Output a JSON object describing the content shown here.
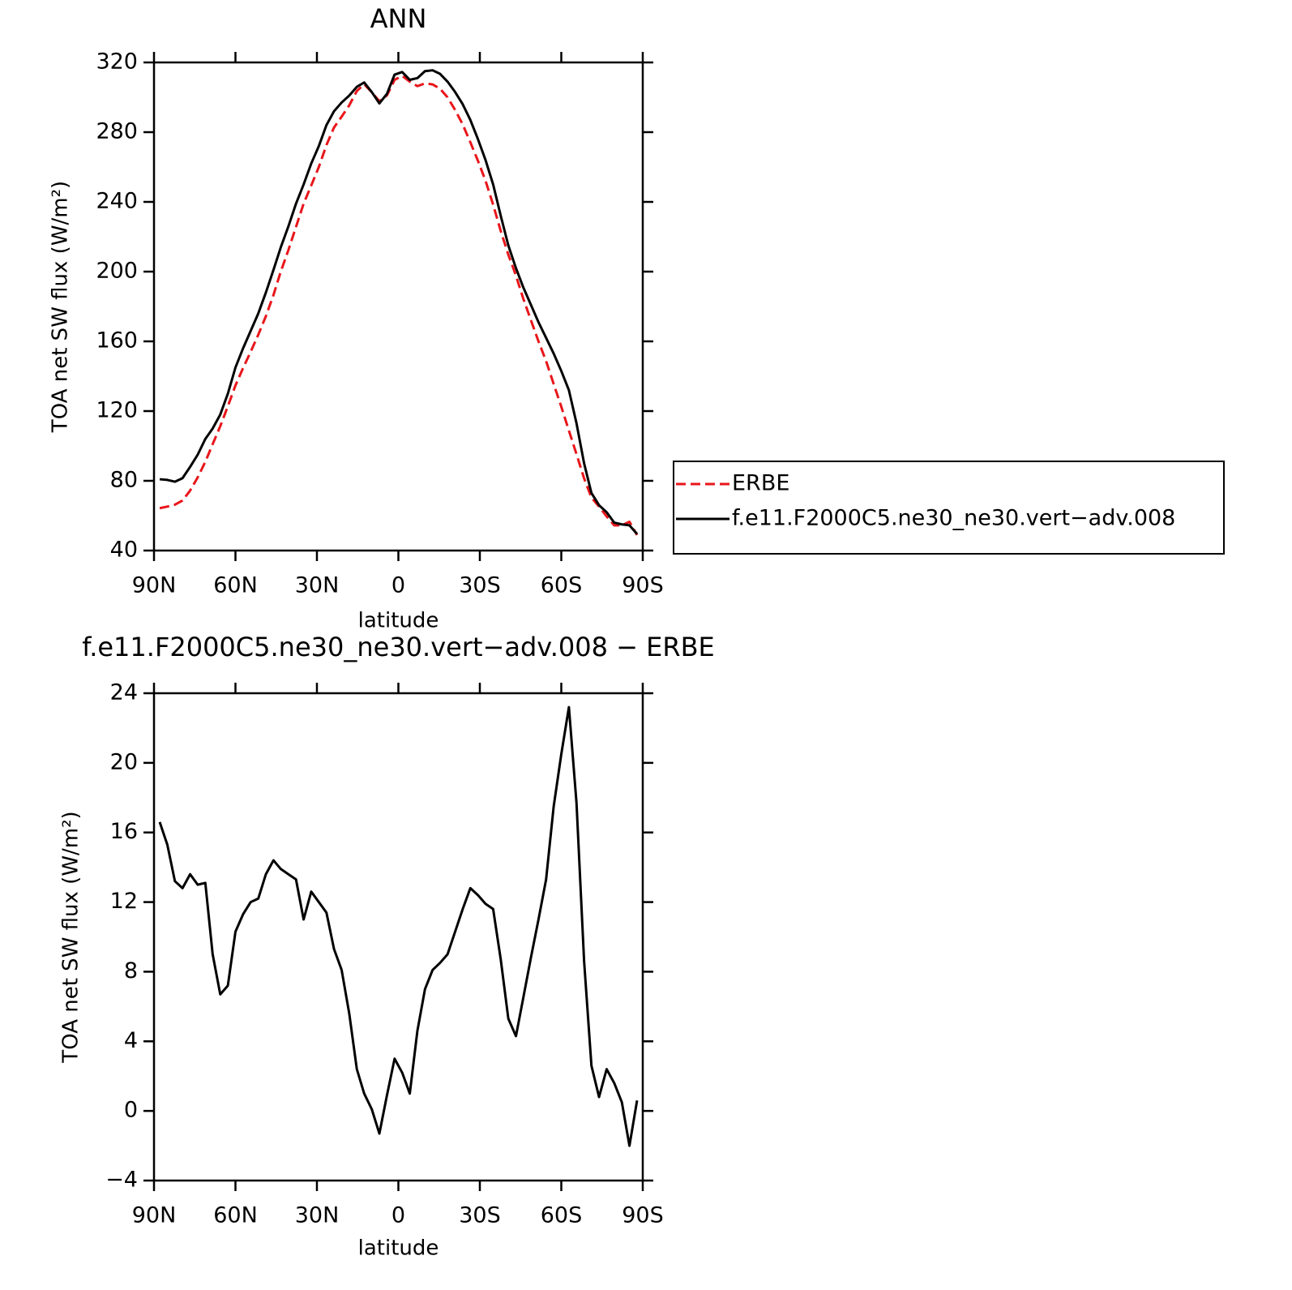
{
  "chart_data": [
    {
      "type": "line",
      "title": "ANN",
      "xlabel": "latitude",
      "ylabel": "TOA net SW flux (W/m²)",
      "x": [
        87.9,
        85.1,
        82.3,
        79.5,
        76.7,
        73.9,
        71.1,
        68.4,
        65.6,
        62.8,
        60.0,
        57.2,
        54.4,
        51.6,
        48.8,
        46.0,
        43.3,
        40.5,
        37.7,
        34.9,
        32.1,
        29.3,
        26.5,
        23.7,
        20.9,
        18.1,
        15.3,
        12.6,
        9.8,
        7.0,
        4.2,
        1.4,
        -1.4,
        -4.2,
        -7.0,
        -9.8,
        -12.6,
        -15.3,
        -18.1,
        -20.9,
        -23.7,
        -26.5,
        -29.3,
        -32.1,
        -34.9,
        -37.7,
        -40.5,
        -43.3,
        -46.0,
        -48.8,
        -51.6,
        -54.4,
        -57.2,
        -60.0,
        -62.8,
        -65.6,
        -68.4,
        -71.1,
        -73.9,
        -76.7,
        -79.5,
        -82.3,
        -85.1,
        -87.9
      ],
      "series": [
        {
          "name": "ERBE",
          "color": "#e8161b",
          "linestyle": "dashed",
          "values": [
            64.3,
            65.2,
            66.3,
            68.7,
            74.4,
            82.0,
            90.9,
            101.0,
            111.3,
            122.8,
            134.7,
            144.7,
            154.0,
            163.8,
            174.4,
            186.6,
            200.1,
            212.4,
            225.7,
            239.0,
            249.4,
            260.0,
            272.6,
            282.7,
            288.9,
            295.4,
            303.6,
            307.5,
            302.9,
            297.8,
            301.1,
            310.0,
            312.3,
            309.0,
            306.4,
            308.0,
            307.4,
            305.0,
            300.0,
            292.7,
            284.4,
            274.2,
            263.6,
            252.1,
            238.4,
            223.3,
            209.7,
            197.7,
            184.5,
            172.2,
            160.0,
            148.7,
            135.5,
            122.5,
            108.8,
            95.3,
            81.4,
            70.4,
            65.2,
            59.6,
            54.4,
            54.5,
            56.5,
            48.9
          ]
        },
        {
          "name": "f.e11.F2000C5.ne30_ne30.vert−adv.008",
          "color": "#000000",
          "linestyle": "solid",
          "values": [
            80.9,
            80.5,
            79.5,
            81.5,
            88,
            95,
            104,
            110,
            118,
            130,
            145,
            156,
            166,
            176,
            188,
            201,
            214,
            226,
            239,
            250,
            262,
            272,
            284,
            292,
            297,
            301,
            306,
            308.5,
            303,
            296.5,
            302,
            313,
            314.5,
            310,
            311,
            315,
            315.5,
            313.5,
            309,
            303,
            296,
            287,
            276,
            264,
            250,
            232,
            215,
            202,
            191,
            181,
            171,
            162,
            153,
            143,
            132,
            113,
            90,
            73,
            66,
            62,
            56,
            55,
            54.5,
            49.5
          ]
        }
      ],
      "xlim": [
        90,
        -90
      ],
      "xticks": [
        {
          "value": 90,
          "label": "90N"
        },
        {
          "value": 60,
          "label": "60N"
        },
        {
          "value": 30,
          "label": "30N"
        },
        0,
        {
          "value": -30,
          "label": "30S"
        },
        {
          "value": -60,
          "label": "60S"
        },
        {
          "value": -90,
          "label": "90S"
        }
      ],
      "ylim": [
        40,
        320
      ],
      "yticks": [
        40,
        80,
        120,
        160,
        200,
        240,
        280,
        320
      ],
      "legend": "right"
    },
    {
      "type": "line",
      "title": "f.e11.F2000C5.ne30_ne30.vert−adv.008 − ERBE",
      "xlabel": "latitude",
      "ylabel": "TOA net SW flux (W/m²)",
      "x": [
        87.9,
        85.1,
        82.3,
        79.5,
        76.7,
        73.9,
        71.1,
        68.4,
        65.6,
        62.8,
        60.0,
        57.2,
        54.4,
        51.6,
        48.8,
        46.0,
        43.3,
        40.5,
        37.7,
        34.9,
        32.1,
        29.3,
        26.5,
        23.7,
        20.9,
        18.1,
        15.3,
        12.6,
        9.8,
        7.0,
        4.2,
        1.4,
        -1.4,
        -4.2,
        -7.0,
        -9.8,
        -12.6,
        -15.3,
        -18.1,
        -20.9,
        -23.7,
        -26.5,
        -29.3,
        -32.1,
        -34.9,
        -37.7,
        -40.5,
        -43.3,
        -46.0,
        -48.8,
        -51.6,
        -54.4,
        -57.2,
        -60.0,
        -62.8,
        -65.6,
        -68.4,
        -71.1,
        -73.9,
        -76.7,
        -79.5,
        -82.3,
        -85.1,
        -87.9
      ],
      "series": [
        {
          "color": "#000000",
          "linestyle": "solid",
          "values": [
            16.6,
            15.3,
            13.2,
            12.8,
            13.6,
            13.0,
            13.1,
            9.0,
            6.7,
            7.2,
            10.3,
            11.3,
            12.0,
            12.2,
            13.6,
            14.4,
            13.9,
            13.6,
            13.3,
            11.0,
            12.6,
            12.0,
            11.4,
            9.3,
            8.1,
            5.6,
            2.4,
            1.0,
            0.1,
            -1.3,
            0.9,
            3.0,
            2.2,
            1.0,
            4.6,
            7.0,
            8.1,
            8.5,
            9.0,
            10.3,
            11.6,
            12.8,
            12.4,
            11.9,
            11.6,
            8.7,
            5.3,
            4.3,
            6.5,
            8.8,
            11.0,
            13.3,
            17.5,
            20.5,
            23.2,
            17.7,
            8.6,
            2.6,
            0.8,
            2.4,
            1.6,
            0.5,
            -2.0,
            0.6
          ]
        }
      ],
      "xlim": [
        90,
        -90
      ],
      "xticks": [
        {
          "value": 90,
          "label": "90N"
        },
        {
          "value": 60,
          "label": "60N"
        },
        {
          "value": 30,
          "label": "30N"
        },
        0,
        {
          "value": -30,
          "label": "30S"
        },
        {
          "value": -60,
          "label": "60S"
        },
        {
          "value": -90,
          "label": "90S"
        }
      ],
      "ylim": [
        -4,
        24
      ],
      "yticks": [
        {
          "value": -4,
          "label": "−4"
        },
        0,
        4,
        8,
        12,
        16,
        20,
        24
      ]
    }
  ]
}
